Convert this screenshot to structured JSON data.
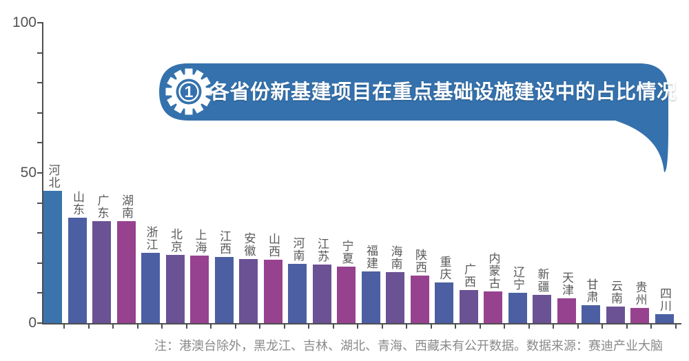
{
  "banner": {
    "badge": "1",
    "title": "各省份新基建项目在重点基础设施建设中的占比情况",
    "color": "#3572ad"
  },
  "note": "注：港澳台除外，黑龙江、吉林、湖北、青海、西藏未有公开数据。数据来源：赛迪产业大脑",
  "colors": {
    "banner_blue": "#3572ad",
    "axis": "#4d4e50",
    "bar_label_text": "#58595b",
    "note_text": "#8a8a8a",
    "bar_blue": "#3b73ad",
    "bar_slate": "#4c5fa2",
    "bar_purple": "#6b5294",
    "bar_magenta": "#97428f"
  },
  "chart_data": {
    "type": "bar",
    "title": "各省份新基建项目在重点基础设施建设中的占比情况",
    "xlabel": "",
    "ylabel": "",
    "ylim": [
      0,
      100
    ],
    "ytick_values": [
      100,
      50,
      0
    ],
    "ytick_labels": [
      "100",
      "50",
      "0"
    ],
    "minor_ytick_step": 10,
    "grid": false,
    "legend": false,
    "categories": [
      "河北",
      "山东",
      "广东",
      "湖南",
      "浙江",
      "北京",
      "上海",
      "江西",
      "安徽",
      "山西",
      "河南",
      "江苏",
      "宁夏",
      "福建",
      "海南",
      "陕西",
      "重庆",
      "广西",
      "内蒙古",
      "辽宁",
      "新疆",
      "天津",
      "甘肃",
      "云南",
      "贵州",
      "四川"
    ],
    "values": [
      44,
      35,
      34,
      34,
      23.3,
      22.7,
      22.5,
      22,
      21.3,
      21,
      19.8,
      19.5,
      18.8,
      17.2,
      17,
      15.8,
      13.5,
      11,
      10.6,
      10,
      9.3,
      8.3,
      6,
      5.4,
      5.1,
      3
    ],
    "bar_colors": [
      "#3b73ad",
      "#4c5fa2",
      "#6b5294",
      "#97428f",
      "#4c5fa2",
      "#6b5294",
      "#97428f",
      "#4c5fa2",
      "#6b5294",
      "#97428f",
      "#4c5fa2",
      "#6b5294",
      "#97428f",
      "#4c5fa2",
      "#6b5294",
      "#97428f",
      "#4c5fa2",
      "#6b5294",
      "#97428f",
      "#4c5fa2",
      "#6b5294",
      "#97428f",
      "#4c5fa2",
      "#6b5294",
      "#97428f",
      "#4c5fa2"
    ],
    "footnote": "注：港澳台除外，黑龙江、吉林、湖北、青海、西藏未有公开数据。数据来源：赛迪产业大脑"
  }
}
